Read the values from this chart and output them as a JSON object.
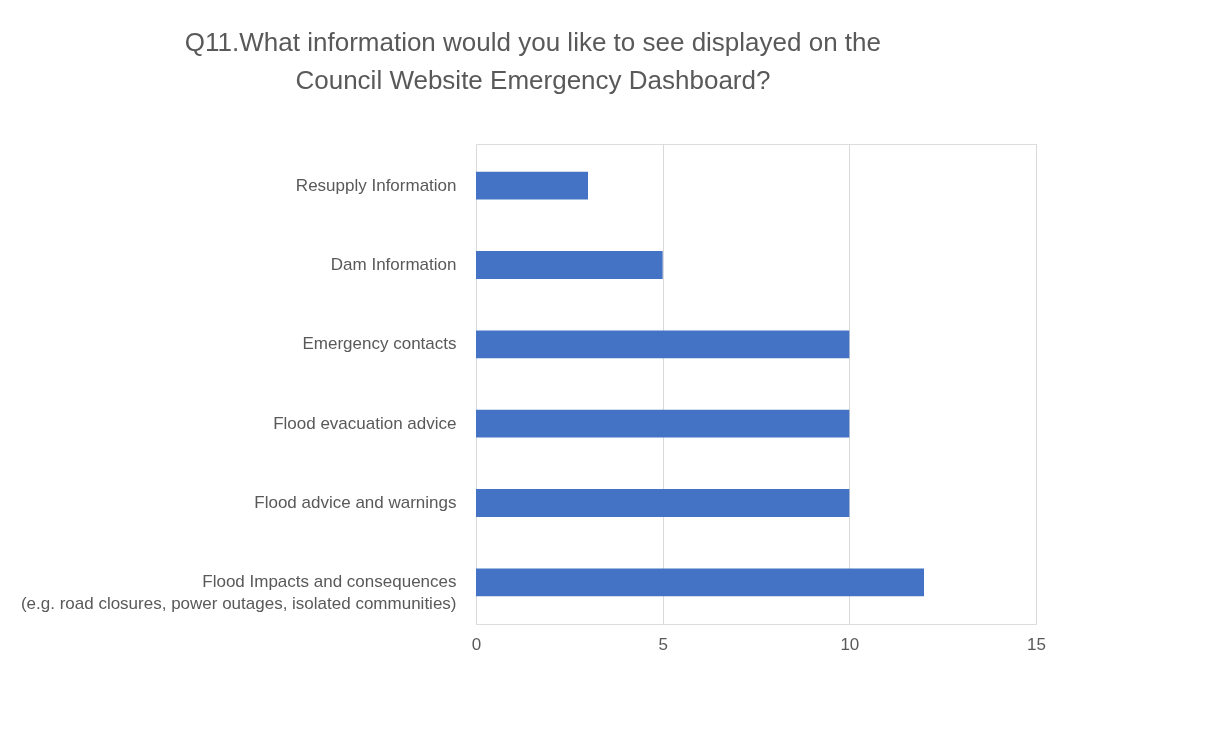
{
  "chart_data": {
    "type": "bar",
    "orientation": "horizontal",
    "title": "Q11.What information would you like to see displayed on the\nCouncil Website Emergency Dashboard?",
    "categories": [
      "Resupply Information",
      "Dam Information",
      "Emergency contacts",
      "Flood evacuation advice",
      "Flood advice and warnings",
      "Flood Impacts and consequences\n(e.g. road closures, power outages, isolated communities)"
    ],
    "values": [
      3,
      5,
      10,
      10,
      10,
      12
    ],
    "color": "#4472c4",
    "xlim": [
      0,
      15
    ],
    "xticks": [
      0,
      5,
      10,
      15
    ],
    "grid": "x"
  }
}
